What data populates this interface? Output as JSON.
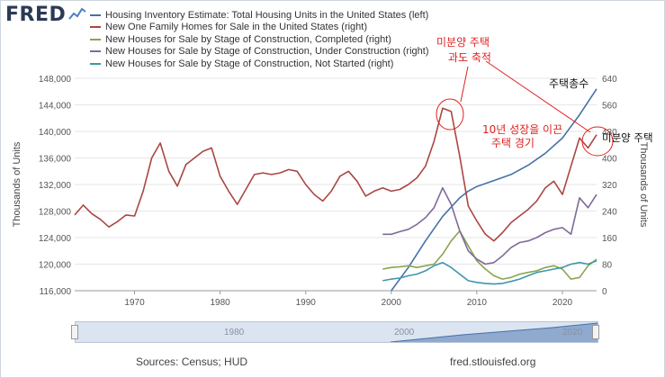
{
  "header": {
    "logo_text": "FRED",
    "legend": [
      {
        "label": "Housing Inventory Estimate: Total Housing Units in the United States (left)",
        "color": "#4572a7"
      },
      {
        "label": "New One Family Homes for Sale in the United States (right)",
        "color": "#aa4643"
      },
      {
        "label": "New Houses for Sale by Stage of Construction, Completed (right)",
        "color": "#89a54e"
      },
      {
        "label": "New Houses for Sale by Stage of Construction, Under Construction (right)",
        "color": "#80699b"
      },
      {
        "label": "New Houses for Sale by Stage of Construction, Not Started (right)",
        "color": "#3d96ae"
      }
    ]
  },
  "chart_data": {
    "type": "line",
    "left_axis": {
      "label": "Thousands of Units",
      "min": 116000,
      "max": 148000,
      "ticks": [
        "116,000",
        "120,000",
        "124,000",
        "128,000",
        "132,000",
        "136,000",
        "140,000",
        "144,000",
        "148,000"
      ]
    },
    "right_axis": {
      "label": "Thousands of Units",
      "min": 0,
      "max": 640,
      "ticks": [
        "0",
        "80",
        "160",
        "240",
        "320",
        "400",
        "480",
        "560",
        "640"
      ]
    },
    "x_axis": {
      "min": 1963,
      "max": 2024,
      "ticks": [
        "1970",
        "1980",
        "1990",
        "2000",
        "2010",
        "2020"
      ]
    },
    "series": [
      {
        "name": "Housing Inventory Estimate: Total Housing Units in the United States (left)",
        "axis": "left",
        "color": "#4572a7",
        "x": [
          2000,
          2002,
          2004,
          2006,
          2008,
          2009,
          2010,
          2012,
          2014,
          2016,
          2018,
          2020,
          2022,
          2024
        ],
        "values": [
          116000,
          119500,
          123500,
          127200,
          130000,
          131000,
          131700,
          132600,
          133500,
          134900,
          136700,
          139000,
          142500,
          146400
        ]
      },
      {
        "name": "New One Family Homes for Sale in the United States (right)",
        "axis": "right",
        "color": "#aa4643",
        "x": [
          1963,
          1964,
          1965,
          1966,
          1967,
          1968,
          1969,
          1970,
          1971,
          1972,
          1973,
          1974,
          1975,
          1976,
          1977,
          1978,
          1979,
          1980,
          1981,
          1982,
          1983,
          1984,
          1985,
          1986,
          1987,
          1988,
          1989,
          1990,
          1991,
          1992,
          1993,
          1994,
          1995,
          1996,
          1997,
          1998,
          1999,
          2000,
          2001,
          2002,
          2003,
          2004,
          2005,
          2006,
          2007,
          2008,
          2009,
          2010,
          2011,
          2012,
          2013,
          2014,
          2015,
          2016,
          2017,
          2018,
          2019,
          2020,
          2021,
          2022,
          2023,
          2024
        ],
        "values": [
          228,
          258,
          232,
          215,
          192,
          208,
          228,
          225,
          300,
          400,
          445,
          360,
          315,
          380,
          400,
          420,
          430,
          345,
          300,
          260,
          305,
          350,
          355,
          350,
          355,
          365,
          360,
          320,
          290,
          270,
          300,
          345,
          360,
          330,
          285,
          300,
          310,
          300,
          305,
          320,
          340,
          375,
          450,
          550,
          540,
          405,
          255,
          210,
          170,
          150,
          175,
          205,
          225,
          245,
          270,
          310,
          330,
          290,
          375,
          460,
          430,
          470
        ]
      },
      {
        "name": "New Houses for Sale by Stage of Construction, Completed (right)",
        "axis": "right",
        "color": "#89a54e",
        "x": [
          1999,
          2000,
          2001,
          2002,
          2003,
          2004,
          2005,
          2006,
          2007,
          2008,
          2009,
          2010,
          2011,
          2012,
          2013,
          2014,
          2015,
          2016,
          2017,
          2018,
          2019,
          2020,
          2021,
          2022,
          2023,
          2024
        ],
        "values": [
          65,
          70,
          72,
          75,
          70,
          75,
          80,
          110,
          150,
          180,
          135,
          90,
          65,
          45,
          35,
          40,
          50,
          55,
          60,
          70,
          75,
          65,
          35,
          40,
          75,
          95
        ]
      },
      {
        "name": "New Houses for Sale by Stage of Construction, Under Construction (right)",
        "axis": "right",
        "color": "#80699b",
        "x": [
          1999,
          2000,
          2001,
          2002,
          2003,
          2004,
          2005,
          2006,
          2007,
          2008,
          2009,
          2010,
          2011,
          2012,
          2013,
          2014,
          2015,
          2016,
          2017,
          2018,
          2019,
          2020,
          2021,
          2022,
          2023,
          2024
        ],
        "values": [
          170,
          170,
          178,
          185,
          200,
          220,
          250,
          310,
          260,
          180,
          120,
          95,
          80,
          85,
          105,
          130,
          145,
          150,
          160,
          175,
          185,
          190,
          170,
          280,
          250,
          290
        ]
      },
      {
        "name": "New Houses for Sale by Stage of Construction, Not Started (right)",
        "axis": "right",
        "color": "#3d96ae",
        "x": [
          1999,
          2000,
          2001,
          2002,
          2003,
          2004,
          2005,
          2006,
          2007,
          2008,
          2009,
          2010,
          2011,
          2012,
          2013,
          2014,
          2015,
          2016,
          2017,
          2018,
          2019,
          2020,
          2021,
          2022,
          2023,
          2024
        ],
        "values": [
          30,
          35,
          38,
          45,
          50,
          60,
          75,
          85,
          70,
          50,
          30,
          25,
          22,
          20,
          22,
          28,
          35,
          45,
          55,
          60,
          65,
          70,
          80,
          85,
          80,
          90
        ]
      }
    ]
  },
  "annotations": {
    "peak_line1": "미분양 주택",
    "peak_line2": "과도 축적",
    "total_label": "주택총수",
    "mid_line1": "10년 성장을 이끈",
    "mid_line2": "주택 경기",
    "right_label": "미분양 주택"
  },
  "navigator": {
    "label_1980": "1980",
    "label_2000": "2000",
    "label_2020": "2020"
  },
  "footer": {
    "source": "Sources: Census; HUD",
    "site": "fred.stlouisfed.org"
  }
}
